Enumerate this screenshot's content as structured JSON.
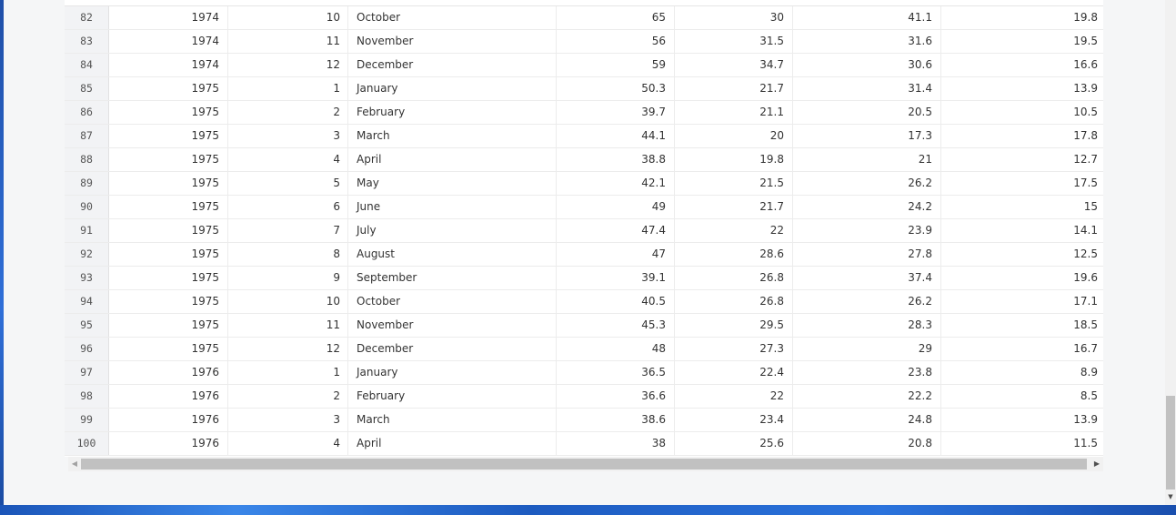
{
  "window": {
    "scroll_left_arrow": "◀",
    "scroll_right_arrow": "▶",
    "scroll_down_arrow": "▼"
  },
  "table": {
    "rows": [
      {
        "idx": "82",
        "year": "1974",
        "month_num": "10",
        "month": "October",
        "v1": "65",
        "v2": "30",
        "v3": "41.1",
        "v4": "19.8"
      },
      {
        "idx": "83",
        "year": "1974",
        "month_num": "11",
        "month": "November",
        "v1": "56",
        "v2": "31.5",
        "v3": "31.6",
        "v4": "19.5"
      },
      {
        "idx": "84",
        "year": "1974",
        "month_num": "12",
        "month": "December",
        "v1": "59",
        "v2": "34.7",
        "v3": "30.6",
        "v4": "16.6"
      },
      {
        "idx": "85",
        "year": "1975",
        "month_num": "1",
        "month": "January",
        "v1": "50.3",
        "v2": "21.7",
        "v3": "31.4",
        "v4": "13.9"
      },
      {
        "idx": "86",
        "year": "1975",
        "month_num": "2",
        "month": "February",
        "v1": "39.7",
        "v2": "21.1",
        "v3": "20.5",
        "v4": "10.5"
      },
      {
        "idx": "87",
        "year": "1975",
        "month_num": "3",
        "month": "March",
        "v1": "44.1",
        "v2": "20",
        "v3": "17.3",
        "v4": "17.8"
      },
      {
        "idx": "88",
        "year": "1975",
        "month_num": "4",
        "month": "April",
        "v1": "38.8",
        "v2": "19.8",
        "v3": "21",
        "v4": "12.7"
      },
      {
        "idx": "89",
        "year": "1975",
        "month_num": "5",
        "month": "May",
        "v1": "42.1",
        "v2": "21.5",
        "v3": "26.2",
        "v4": "17.5"
      },
      {
        "idx": "90",
        "year": "1975",
        "month_num": "6",
        "month": "June",
        "v1": "49",
        "v2": "21.7",
        "v3": "24.2",
        "v4": "15"
      },
      {
        "idx": "91",
        "year": "1975",
        "month_num": "7",
        "month": "July",
        "v1": "47.4",
        "v2": "22",
        "v3": "23.9",
        "v4": "14.1"
      },
      {
        "idx": "92",
        "year": "1975",
        "month_num": "8",
        "month": "August",
        "v1": "47",
        "v2": "28.6",
        "v3": "27.8",
        "v4": "12.5"
      },
      {
        "idx": "93",
        "year": "1975",
        "month_num": "9",
        "month": "September",
        "v1": "39.1",
        "v2": "26.8",
        "v3": "37.4",
        "v4": "19.6"
      },
      {
        "idx": "94",
        "year": "1975",
        "month_num": "10",
        "month": "October",
        "v1": "40.5",
        "v2": "26.8",
        "v3": "26.2",
        "v4": "17.1"
      },
      {
        "idx": "95",
        "year": "1975",
        "month_num": "11",
        "month": "November",
        "v1": "45.3",
        "v2": "29.5",
        "v3": "28.3",
        "v4": "18.5"
      },
      {
        "idx": "96",
        "year": "1975",
        "month_num": "12",
        "month": "December",
        "v1": "48",
        "v2": "27.3",
        "v3": "29",
        "v4": "16.7"
      },
      {
        "idx": "97",
        "year": "1976",
        "month_num": "1",
        "month": "January",
        "v1": "36.5",
        "v2": "22.4",
        "v3": "23.8",
        "v4": "8.9"
      },
      {
        "idx": "98",
        "year": "1976",
        "month_num": "2",
        "month": "February",
        "v1": "36.6",
        "v2": "22",
        "v3": "22.2",
        "v4": "8.5"
      },
      {
        "idx": "99",
        "year": "1976",
        "month_num": "3",
        "month": "March",
        "v1": "38.6",
        "v2": "23.4",
        "v3": "24.8",
        "v4": "13.9"
      },
      {
        "idx": "100",
        "year": "1976",
        "month_num": "4",
        "month": "April",
        "v1": "38",
        "v2": "25.6",
        "v3": "20.8",
        "v4": "11.5"
      }
    ]
  }
}
